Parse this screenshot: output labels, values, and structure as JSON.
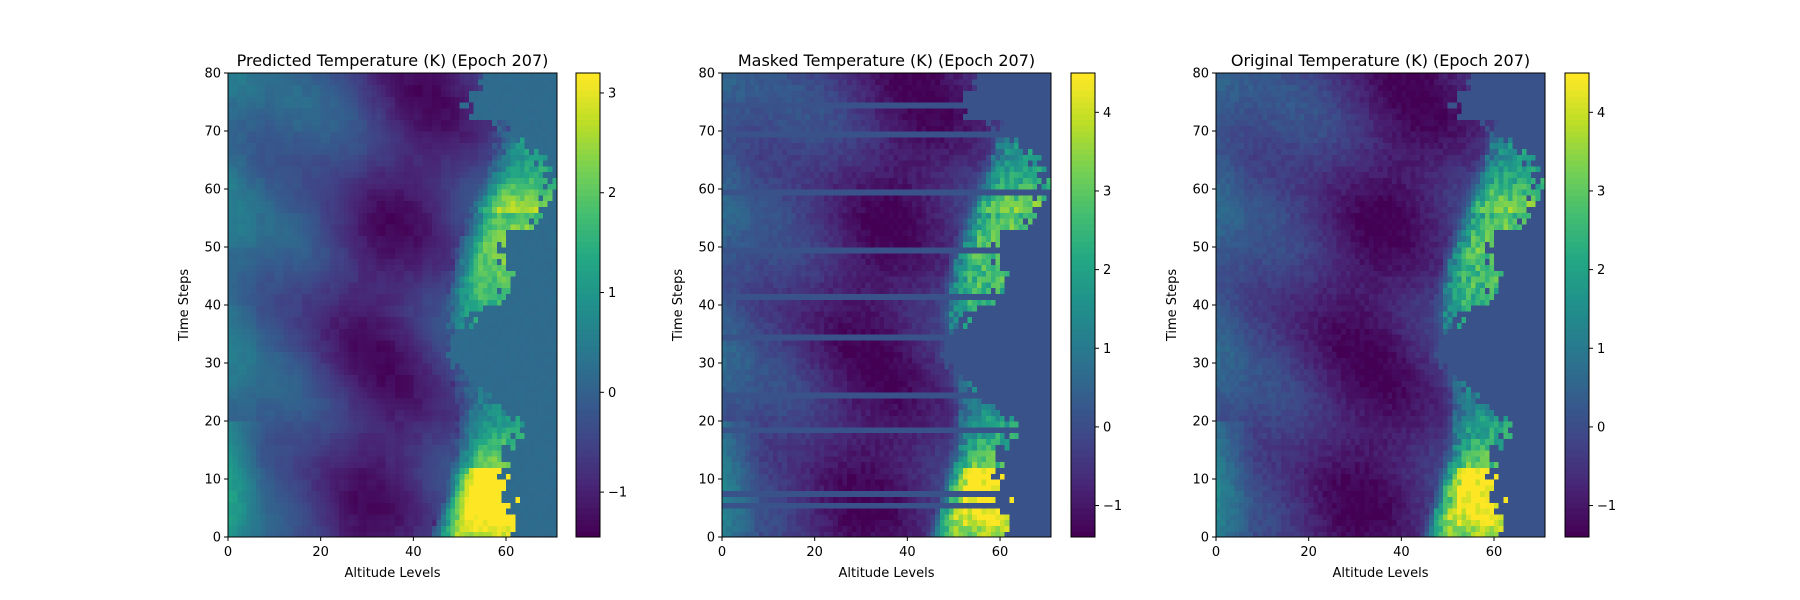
{
  "chart_data": [
    {
      "type": "heatmap",
      "title": "Predicted Temperature (K) (Epoch 207)",
      "xlabel": "Altitude Levels",
      "ylabel": "Time Steps",
      "xlim": [
        0,
        71
      ],
      "ylim": [
        0,
        80
      ],
      "x_ticks": [
        0,
        20,
        40,
        60
      ],
      "y_ticks": [
        0,
        10,
        20,
        30,
        40,
        50,
        60,
        70,
        80
      ],
      "colormap": "viridis",
      "colorbar_range": [
        -1.45,
        3.2
      ],
      "colorbar_ticks": [
        -1,
        0,
        1,
        2,
        3
      ],
      "colorbar_tick_labels": [
        "−1",
        "0",
        "1",
        "2",
        "3"
      ]
    },
    {
      "type": "heatmap",
      "title": "Masked Temperature (K) (Epoch 207)",
      "xlabel": "Altitude Levels",
      "ylabel": "Time Steps",
      "xlim": [
        0,
        71
      ],
      "ylim": [
        0,
        80
      ],
      "x_ticks": [
        0,
        20,
        40,
        60
      ],
      "y_ticks": [
        0,
        10,
        20,
        30,
        40,
        50,
        60,
        70,
        80
      ],
      "colormap": "viridis",
      "colorbar_range": [
        -1.4,
        4.5
      ],
      "colorbar_ticks": [
        -1,
        0,
        1,
        2,
        3,
        4
      ],
      "colorbar_tick_labels": [
        "−1",
        "0",
        "1",
        "2",
        "3",
        "4"
      ],
      "masked_time_steps": [
        5,
        7,
        18,
        24,
        34,
        41,
        49,
        59,
        69,
        74
      ]
    },
    {
      "type": "heatmap",
      "title": "Original Temperature (K) (Epoch 207)",
      "xlabel": "Altitude Levels",
      "ylabel": "Time Steps",
      "xlim": [
        0,
        71
      ],
      "ylim": [
        0,
        80
      ],
      "x_ticks": [
        0,
        20,
        40,
        60
      ],
      "y_ticks": [
        0,
        10,
        20,
        30,
        40,
        50,
        60,
        70,
        80
      ],
      "colormap": "viridis",
      "colorbar_range": [
        -1.4,
        4.5
      ],
      "colorbar_ticks": [
        -1,
        0,
        1,
        2,
        3,
        4
      ],
      "colorbar_tick_labels": [
        "−1",
        "0",
        "1",
        "2",
        "3",
        "4"
      ]
    }
  ]
}
